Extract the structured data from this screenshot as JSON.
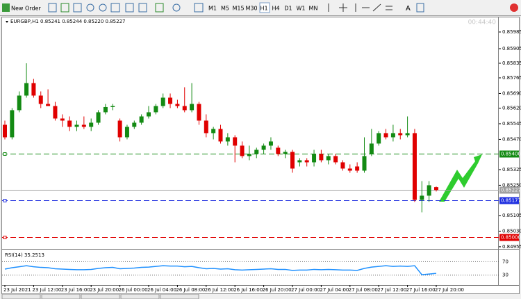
{
  "toolbar": {
    "new_order": "New Order",
    "timeframes": [
      "M1",
      "M5",
      "M15",
      "M30",
      "H1",
      "H4",
      "D1",
      "W1",
      "MN"
    ],
    "active": "H1"
  },
  "chart_data": [
    {
      "type": "candlestick",
      "title": "EURGBP,H1  0.85241 0.85244 0.85220 0.85227",
      "timer": "00:44:40",
      "categories": [
        "23 Jul 2021",
        null,
        null,
        null,
        "23 Jul 12:00",
        null,
        null,
        null,
        "23 Jul 16:00",
        null,
        null,
        null,
        "23 Jul 20:00",
        null,
        null,
        null,
        "26 Jul 00:00",
        null,
        null,
        null,
        "26 Jul 04:00",
        null,
        null,
        null,
        "26 Jul 08:00",
        null,
        null,
        null,
        "26 Jul 12:00",
        null,
        null,
        null,
        "26 Jul 16:00",
        null,
        null,
        null,
        "26 Jul 20:00",
        null,
        null,
        null,
        "27 Jul 00:00",
        null,
        null,
        null,
        "27 Jul 04:00",
        null,
        null,
        null,
        "27 Jul 08:00",
        null,
        null,
        null,
        "27 Jul 12:00",
        null,
        null,
        null,
        "27 Jul 16:00",
        null,
        null,
        null,
        "27 Jul 20:00"
      ],
      "open": [
        0.8554,
        0.8548,
        0.8561,
        0.8568,
        0.8574,
        0.8568,
        0.8564,
        0.8563,
        0.8557,
        0.8556,
        0.8553,
        0.8554,
        0.8553,
        0.8555,
        0.856,
        0.85625,
        0.8556,
        0.8548,
        0.8553,
        0.8555,
        0.8558,
        0.856,
        0.8563,
        0.8567,
        0.8564,
        0.8563,
        0.8561,
        0.8564,
        0.8556,
        0.855,
        0.8552,
        0.8546,
        0.8548,
        0.8544,
        0.8539,
        0.854,
        0.8542,
        0.8544,
        0.8543,
        0.854,
        0.8541,
        0.8536,
        0.8537,
        0.8536,
        0.854,
        0.8537,
        0.8539,
        0.8536,
        0.8533,
        0.8534,
        0.8532,
        0.854,
        0.8545,
        0.855,
        0.8548,
        0.855,
        0.8549,
        0.855,
        0.8518,
        0.852,
        0.85241
      ],
      "high": [
        0.8556,
        0.8562,
        0.857,
        0.85835,
        0.8576,
        0.857,
        0.8571,
        0.8565,
        0.8559,
        0.8558,
        0.8556,
        0.8558,
        0.8557,
        0.8561,
        0.8564,
        0.8564,
        0.8557,
        0.8554,
        0.8556,
        0.8559,
        0.8563,
        0.8564,
        0.8569,
        0.8569,
        0.8566,
        0.8572,
        0.8574,
        0.8565,
        0.8559,
        0.8553,
        0.8554,
        0.855,
        0.8549,
        0.8546,
        0.8544,
        0.8543,
        0.8545,
        0.8548,
        0.8544,
        0.8542,
        0.8542,
        0.8538,
        0.8538,
        0.8542,
        0.8542,
        0.854,
        0.854,
        0.8537,
        0.8535,
        0.8536,
        0.8548,
        0.8552,
        0.8551,
        0.8552,
        0.8554,
        0.8552,
        0.8558,
        0.8552,
        0.8527,
        0.8527,
        0.85244
      ],
      "low": [
        0.8547,
        0.8547,
        0.856,
        0.8567,
        0.8567,
        0.8562,
        0.8563,
        0.8556,
        0.8553,
        0.8551,
        0.8551,
        0.8552,
        0.8551,
        0.8554,
        0.8559,
        0.8561,
        0.8546,
        0.8547,
        0.8552,
        0.8554,
        0.8557,
        0.8559,
        0.8562,
        0.8562,
        0.8562,
        0.856,
        0.856,
        0.8554,
        0.8548,
        0.8547,
        0.8545,
        0.8544,
        0.8536,
        0.8538,
        0.8537,
        0.8538,
        0.854,
        0.8542,
        0.8539,
        0.8538,
        0.8531,
        0.8534,
        0.8534,
        0.8534,
        0.8536,
        0.8535,
        0.8535,
        0.8532,
        0.8531,
        0.8531,
        0.8531,
        0.8539,
        0.8544,
        0.8547,
        0.8546,
        0.8547,
        0.8548,
        0.8517,
        0.8512,
        0.8517,
        0.8522
      ],
      "close": [
        0.8548,
        0.8561,
        0.8568,
        0.8574,
        0.8568,
        0.8564,
        0.8563,
        0.8557,
        0.8556,
        0.8553,
        0.8554,
        0.8553,
        0.8555,
        0.856,
        0.85625,
        0.8563,
        0.8548,
        0.8553,
        0.8555,
        0.8558,
        0.856,
        0.8563,
        0.8567,
        0.8564,
        0.8563,
        0.8561,
        0.8564,
        0.8556,
        0.855,
        0.8552,
        0.8546,
        0.8548,
        0.8544,
        0.8539,
        0.854,
        0.8542,
        0.8544,
        0.8546,
        0.854,
        0.8541,
        0.8533,
        0.8537,
        0.8536,
        0.854,
        0.8537,
        0.8539,
        0.8536,
        0.8533,
        0.8532,
        0.8532,
        0.8539,
        0.8545,
        0.855,
        0.8548,
        0.855,
        0.8549,
        0.855,
        0.8518,
        0.852,
        0.8525,
        0.85227
      ],
      "up_color": "#138a13",
      "down_color": "#e00000",
      "ylim": [
        0.84948,
        0.86055
      ],
      "yticks": [
        0.85985,
        0.85905,
        0.85835,
        0.85765,
        {
          "value": 0.8569,
          "label": "0.85690"
        },
        {
          "value": 0.8562,
          "label": "0.85620"
        },
        0.85545,
        {
          "value": 0.8547,
          "label": "0.85470"
        },
        0.85325,
        {
          "value": 0.8525,
          "label": "0.85250"
        },
        0.85105,
        {
          "value": 0.8503,
          "label": "0.85030"
        },
        0.84955
      ],
      "levels": [
        {
          "value": 0.854,
          "label": "0.85400",
          "color": "#138a13",
          "style": "dashed"
        },
        {
          "value": 0.85227,
          "label": "0.85227",
          "color": "#a0a0a0",
          "style": "solid"
        },
        {
          "value": 0.85177,
          "label": "0.85177",
          "color": "#2030e0",
          "style": "dashed"
        },
        {
          "value": 0.85,
          "label": "0.85000",
          "color": "#e00000",
          "style": "dashed"
        }
      ]
    },
    {
      "type": "line",
      "title": "RSI(14) 35.2513",
      "values": [
        48,
        52,
        55,
        58,
        55,
        53,
        52,
        49,
        48,
        47,
        46,
        46,
        47,
        50,
        52,
        53,
        49,
        50,
        51,
        53,
        54,
        56,
        58,
        57,
        57,
        55,
        56,
        52,
        49,
        50,
        48,
        49,
        46,
        45,
        46,
        47,
        48,
        49,
        47,
        47,
        44,
        45,
        45,
        47,
        46,
        47,
        46,
        45,
        45,
        44,
        50,
        54,
        56,
        58,
        56,
        57,
        56,
        58,
        31,
        33,
        35.2513
      ],
      "color": "#1e90ff",
      "ylim": [
        0,
        100
      ],
      "yticks": [
        70,
        30
      ]
    }
  ]
}
